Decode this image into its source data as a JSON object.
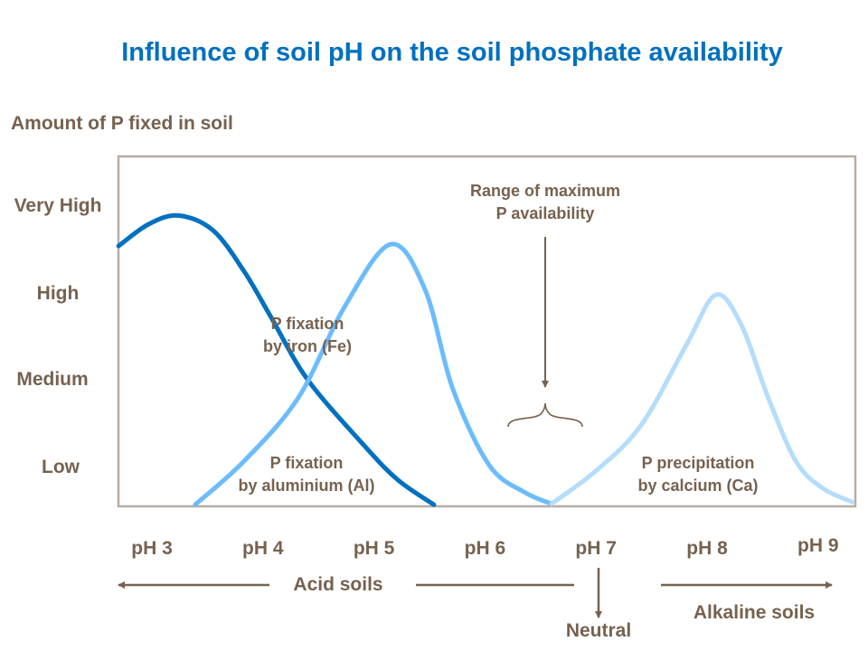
{
  "title": "Influence of soil pH on the soil phosphate availability",
  "chart_data": {
    "type": "line",
    "ylabel": "Amount of P fixed in soil",
    "y_levels": [
      "Low",
      "Medium",
      "High",
      "Very High"
    ],
    "x_ticks": [
      "pH 3",
      "pH 4",
      "pH 5",
      "pH 6",
      "pH 7",
      "pH 8",
      "pH 9"
    ],
    "x_values": [
      3,
      4,
      5,
      6,
      7,
      8,
      9
    ],
    "xlim": [
      2.7,
      9.35
    ],
    "grid": false,
    "series": [
      {
        "name": "P fixation by iron (Fe)",
        "color": "#0070c0",
        "points": [
          [
            2.7,
            3.56
          ],
          [
            2.97,
            3.81
          ],
          [
            3.24,
            3.91
          ],
          [
            3.55,
            3.74
          ],
          [
            3.83,
            3.27
          ],
          [
            4.07,
            2.75
          ],
          [
            4.4,
            2.03
          ],
          [
            4.89,
            1.3
          ],
          [
            5.21,
            0.88
          ],
          [
            5.54,
            0.59
          ]
        ]
      },
      {
        "name": "P fixation by aluminium (Al)",
        "color": "#6cbcfc",
        "points": [
          [
            3.39,
            0.59
          ],
          [
            3.83,
            1.09
          ],
          [
            4.32,
            1.82
          ],
          [
            4.73,
            2.85
          ],
          [
            5.15,
            3.58
          ],
          [
            5.46,
            3.06
          ],
          [
            5.71,
            1.92
          ],
          [
            6.04,
            1.04
          ],
          [
            6.36,
            0.73
          ],
          [
            6.6,
            0.6
          ]
        ]
      },
      {
        "name": "P precipitation by calcium (Ca)",
        "color": "#b5ddfb",
        "points": [
          [
            6.6,
            0.6
          ],
          [
            7.01,
            0.99
          ],
          [
            7.41,
            1.51
          ],
          [
            7.82,
            2.44
          ],
          [
            8.08,
            3.0
          ],
          [
            8.31,
            2.65
          ],
          [
            8.55,
            1.82
          ],
          [
            8.8,
            1.09
          ],
          [
            9.04,
            0.78
          ],
          [
            9.31,
            0.62
          ]
        ]
      }
    ],
    "labels": {
      "fe": [
        "P fixation",
        "by iron (Fe)"
      ],
      "al": [
        "P fixation",
        "by aluminium (Al)"
      ],
      "ca": [
        "P precipitation",
        "by calcium (Ca)"
      ],
      "range": [
        "Range of maximum",
        "P availability"
      ]
    },
    "zones": {
      "acid": "Acid soils",
      "neutral": "Neutral",
      "alkaline": "Alkaline soils"
    }
  },
  "colors": {
    "text": "#76624f",
    "title": "#0070c0",
    "frame": "#b7ada3"
  }
}
